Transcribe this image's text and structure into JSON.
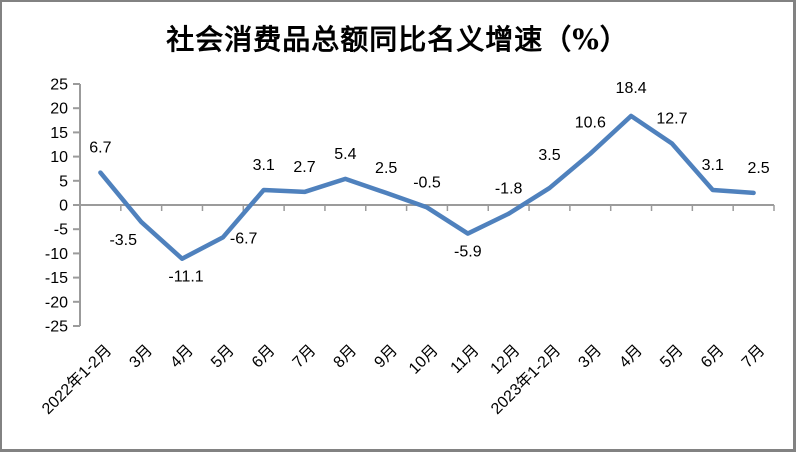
{
  "chart_data": {
    "type": "line",
    "title": "社会消费品总额同比名义增速（%）",
    "categories": [
      "2022年1-2月",
      "3月",
      "4月",
      "5月",
      "6月",
      "7月",
      "8月",
      "9月",
      "10月",
      "11月",
      "12月",
      "2023年1-2月",
      "3月",
      "4月",
      "5月",
      "6月",
      "7月"
    ],
    "values": [
      6.7,
      -3.5,
      -11.1,
      -6.7,
      3.1,
      2.7,
      5.4,
      2.5,
      -0.5,
      -5.9,
      -1.8,
      3.5,
      10.6,
      18.4,
      12.7,
      3.1,
      2.5
    ],
    "data_labels": [
      "6.7",
      "-3.5",
      "-11.1",
      "-6.7",
      "3.1",
      "2.7",
      "5.4",
      "2.5",
      "-0.5",
      "-5.9",
      "-1.8",
      "3.5",
      "10.6",
      "18.4",
      "12.7",
      "3.1",
      "2.5"
    ],
    "yticks": [
      25,
      20,
      15,
      10,
      5,
      0,
      -5,
      -10,
      -15,
      -20,
      -25
    ],
    "ylim": [
      -25,
      25
    ],
    "xlabel": "",
    "ylabel": "",
    "grid": false,
    "legend": "none",
    "x_label_rotation_deg": 45,
    "colors": {
      "line": "#4F81BD",
      "axis": "#9B9B9B",
      "text": "#000000",
      "frame_border": "#828282",
      "background": "#FFFFFF"
    }
  }
}
